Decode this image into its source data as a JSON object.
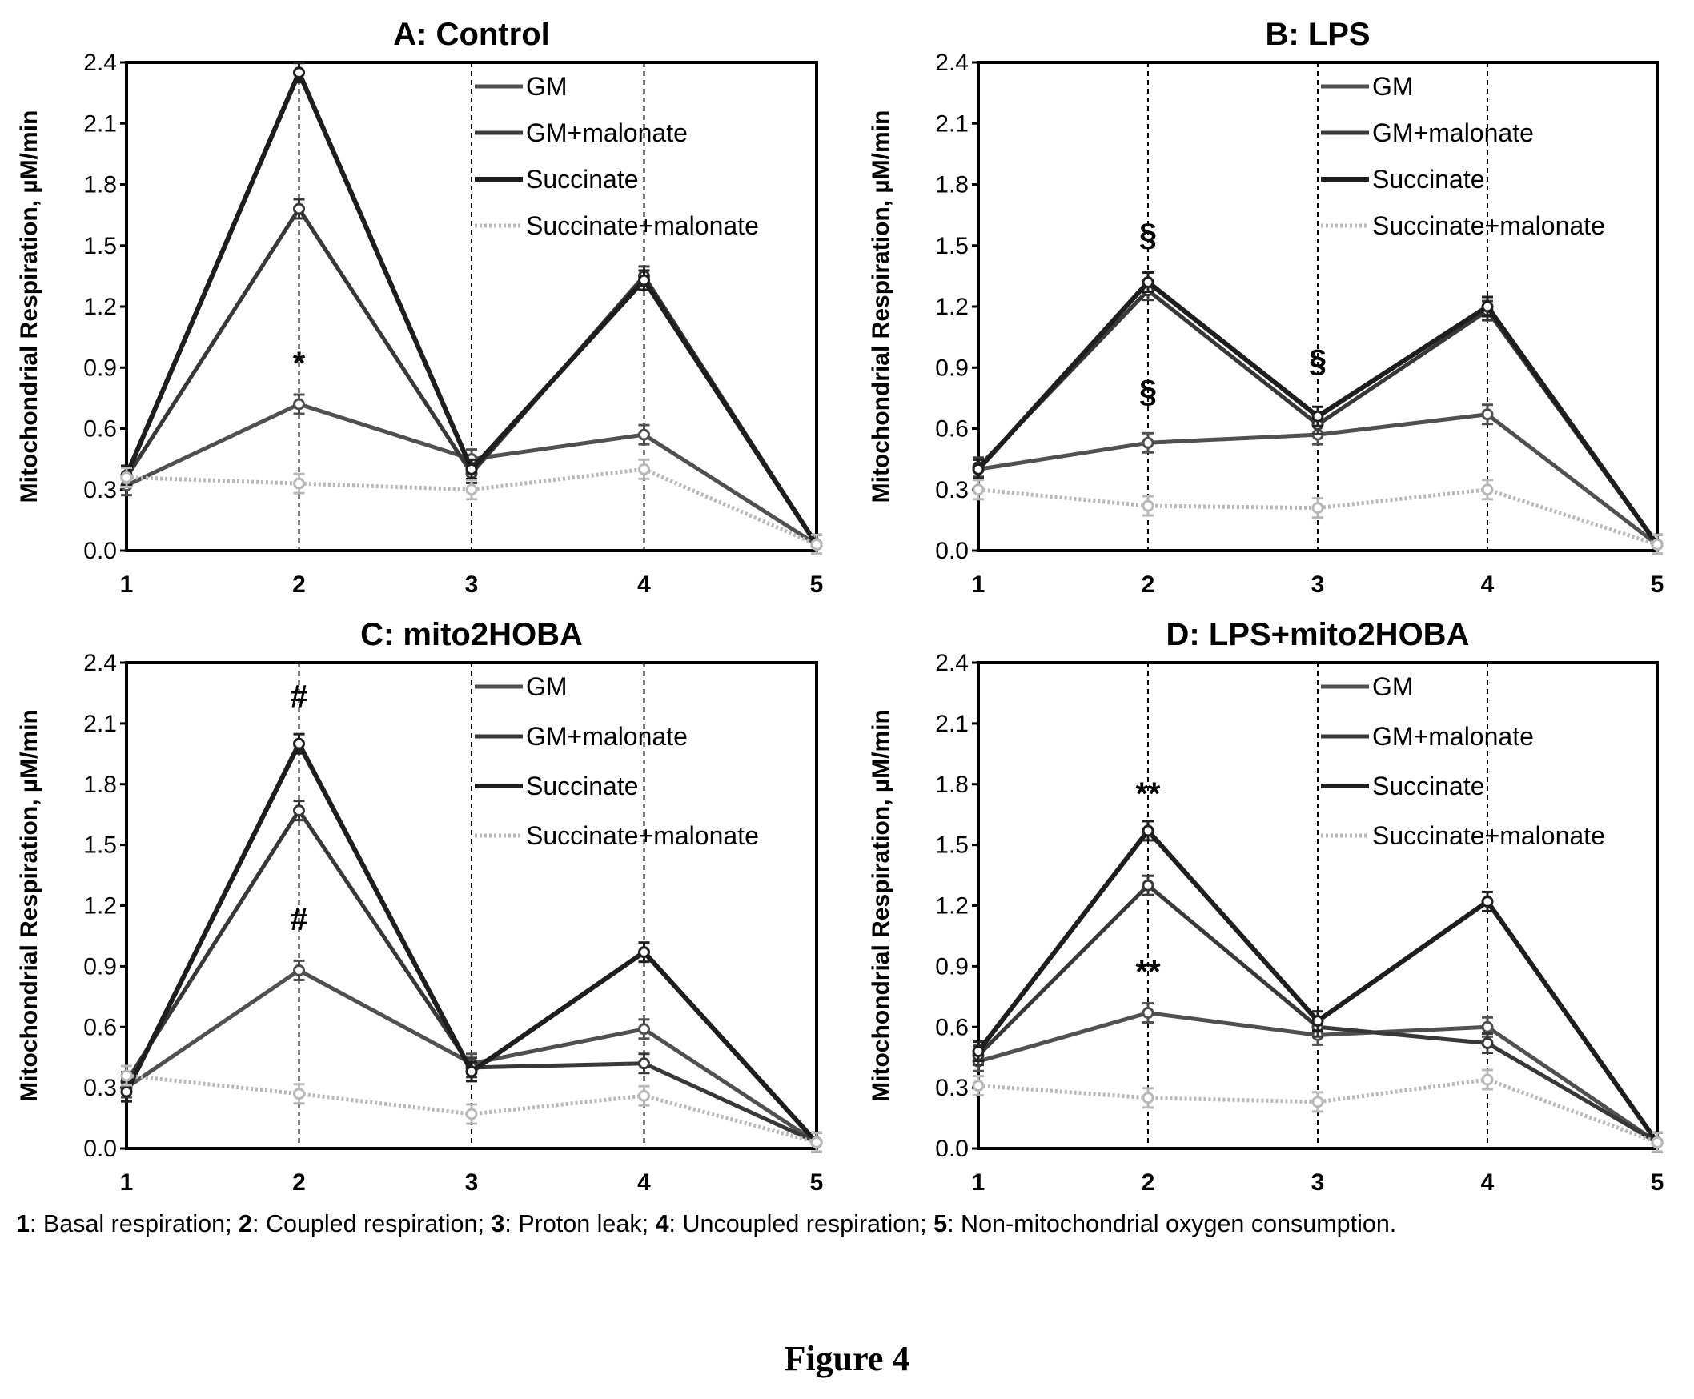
{
  "chart_data": [
    {
      "type": "line",
      "title": "A: Control",
      "ylabel": "Mitochondrial Respiration, µM/min",
      "x": [
        1,
        2,
        3,
        4,
        5
      ],
      "xticks": [
        "1",
        "2",
        "3",
        "4",
        "5"
      ],
      "ylim": [
        0,
        2.4
      ],
      "yticks": [
        "0.0",
        "0.3",
        "0.6",
        "0.9",
        "1.2",
        "1.5",
        "1.8",
        "2.1",
        "2.4"
      ],
      "legend_position": "top-right",
      "series": [
        {
          "name": "GM",
          "values": [
            0.32,
            0.72,
            0.45,
            0.57,
            0.03
          ]
        },
        {
          "name": "GM+malonate",
          "values": [
            0.36,
            1.68,
            0.38,
            1.35,
            0.03
          ]
        },
        {
          "name": "Succinate",
          "values": [
            0.37,
            2.35,
            0.4,
            1.33,
            0.03
          ]
        },
        {
          "name": "Succinate+malonate",
          "values": [
            0.36,
            0.33,
            0.3,
            0.4,
            0.03
          ]
        }
      ],
      "annotations": [
        {
          "text": "*",
          "x": 2,
          "y": 0.87
        }
      ]
    },
    {
      "type": "line",
      "title": "B: LPS",
      "ylabel": "Mitochondrial Respiration, µM/min",
      "x": [
        1,
        2,
        3,
        4,
        5
      ],
      "xticks": [
        "1",
        "2",
        "3",
        "4",
        "5"
      ],
      "ylim": [
        0,
        2.4
      ],
      "yticks": [
        "0.0",
        "0.3",
        "0.6",
        "0.9",
        "1.2",
        "1.5",
        "1.8",
        "2.1",
        "2.4"
      ],
      "legend_position": "top-right",
      "series": [
        {
          "name": "GM",
          "values": [
            0.4,
            0.53,
            0.57,
            0.67,
            0.03
          ]
        },
        {
          "name": "GM+malonate",
          "values": [
            0.41,
            1.28,
            0.62,
            1.18,
            0.03
          ]
        },
        {
          "name": "Succinate",
          "values": [
            0.4,
            1.32,
            0.66,
            1.2,
            0.03
          ]
        },
        {
          "name": "Succinate+malonate",
          "values": [
            0.3,
            0.22,
            0.21,
            0.3,
            0.03
          ]
        }
      ],
      "annotations": [
        {
          "text": "§",
          "x": 2,
          "y": 1.5
        },
        {
          "text": "§",
          "x": 2,
          "y": 0.73
        },
        {
          "text": "§",
          "x": 3,
          "y": 0.88
        }
      ]
    },
    {
      "type": "line",
      "title": "C: mito2HOBA",
      "ylabel": "Mitochondrial Respiration, µM/min",
      "x": [
        1,
        2,
        3,
        4,
        5
      ],
      "xticks": [
        "1",
        "2",
        "3",
        "4",
        "5"
      ],
      "ylim": [
        0,
        2.4
      ],
      "yticks": [
        "0.0",
        "0.3",
        "0.6",
        "0.9",
        "1.2",
        "1.5",
        "1.8",
        "2.1",
        "2.4"
      ],
      "legend_position": "top-right",
      "series": [
        {
          "name": "GM",
          "values": [
            0.3,
            0.88,
            0.42,
            0.59,
            0.03
          ]
        },
        {
          "name": "GM+malonate",
          "values": [
            0.33,
            1.67,
            0.4,
            0.42,
            0.03
          ]
        },
        {
          "name": "Succinate",
          "values": [
            0.28,
            2.0,
            0.38,
            0.97,
            0.03
          ]
        },
        {
          "name": "Succinate+malonate",
          "values": [
            0.36,
            0.27,
            0.17,
            0.26,
            0.03
          ]
        }
      ],
      "annotations": [
        {
          "text": "#",
          "x": 2,
          "y": 2.18
        },
        {
          "text": "#",
          "x": 2,
          "y": 1.08
        }
      ]
    },
    {
      "type": "line",
      "title": "D: LPS+mito2HOBA",
      "ylabel": "Mitochondrial Respiration, µM/min",
      "x": [
        1,
        2,
        3,
        4,
        5
      ],
      "xticks": [
        "1",
        "2",
        "3",
        "4",
        "5"
      ],
      "ylim": [
        0,
        2.4
      ],
      "yticks": [
        "0.0",
        "0.3",
        "0.6",
        "0.9",
        "1.2",
        "1.5",
        "1.8",
        "2.1",
        "2.4"
      ],
      "legend_position": "top-right",
      "series": [
        {
          "name": "GM",
          "values": [
            0.43,
            0.67,
            0.56,
            0.6,
            0.03
          ]
        },
        {
          "name": "GM+malonate",
          "values": [
            0.46,
            1.3,
            0.6,
            0.52,
            0.03
          ]
        },
        {
          "name": "Succinate",
          "values": [
            0.48,
            1.57,
            0.63,
            1.22,
            0.03
          ]
        },
        {
          "name": "Succinate+malonate",
          "values": [
            0.31,
            0.25,
            0.23,
            0.34,
            0.03
          ]
        }
      ],
      "annotations": [
        {
          "text": "**",
          "x": 2,
          "y": 1.7
        },
        {
          "text": "**",
          "x": 2,
          "y": 0.82
        }
      ]
    }
  ],
  "caption": [
    {
      "num": "1",
      "text": ": Basal respiration; "
    },
    {
      "num": "2",
      "text": ": Coupled respiration; "
    },
    {
      "num": "3",
      "text": ": Proton leak; "
    },
    {
      "num": "4",
      "text": ": Uncoupled  respiration; "
    },
    {
      "num": "5",
      "text": ": Non-mitochondrial oxygen consumption."
    }
  ],
  "figure_label": "Figure 4",
  "colors": {
    "GM": "#505050",
    "GM+malonate": "#383838",
    "Succinate": "#1e1e1e",
    "Succinate+malonate": "#b8b8b8",
    "axis": "#000000"
  }
}
